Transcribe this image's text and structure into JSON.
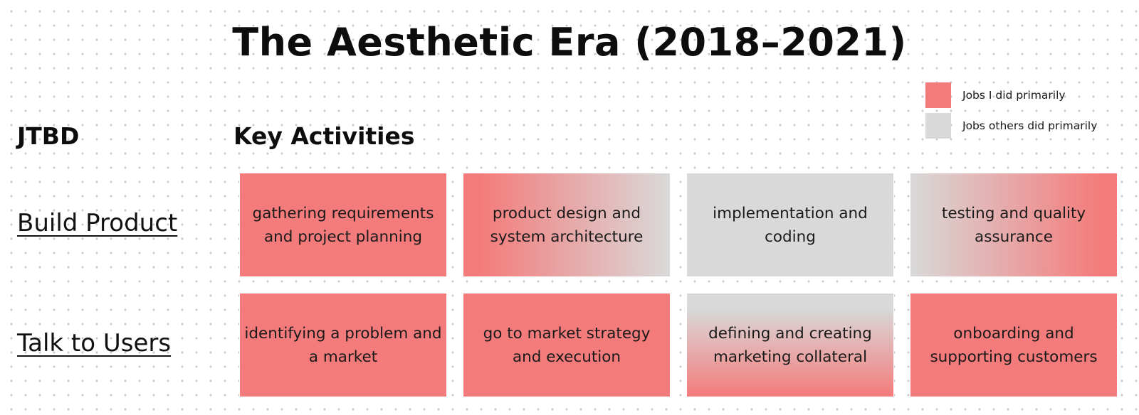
{
  "title": "The Aesthetic Era (2018–2021)",
  "colors": {
    "mine": "#f47b7b",
    "others": "#d9d9d9"
  },
  "legend": [
    {
      "label": "Jobs I did primarily",
      "color": "#f47b7b"
    },
    {
      "label": "Jobs others did primarily",
      "color": "#d9d9d9"
    }
  ],
  "headers": {
    "jtbd": "JTBD",
    "activities": "Key Activities"
  },
  "rows": [
    {
      "label": "Build Product",
      "cells": [
        {
          "text": "gathering requirements and project planning",
          "fill": "mine"
        },
        {
          "text": "product design and system architecture",
          "fill": "mine-to-others-right"
        },
        {
          "text": "implementation and coding",
          "fill": "others"
        },
        {
          "text": "testing and quality assurance",
          "fill": "others-to-mine-right"
        }
      ]
    },
    {
      "label": "Talk to Users",
      "cells": [
        {
          "text": "identifying a problem and a market",
          "fill": "mine"
        },
        {
          "text": "go to market strategy and execution",
          "fill": "mine"
        },
        {
          "text": "defining and creating marketing collateral",
          "fill": "others-to-mine-down"
        },
        {
          "text": "onboarding and supporting customers",
          "fill": "mine"
        }
      ]
    }
  ]
}
